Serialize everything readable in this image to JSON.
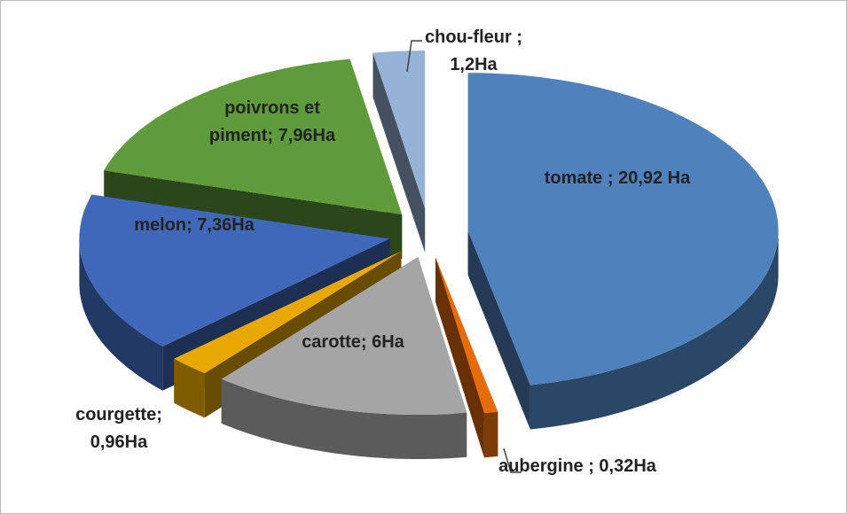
{
  "chart_data": {
    "type": "pie3d",
    "categories": [
      "tomate",
      "aubergine",
      "carotte",
      "courgette",
      "melon",
      "poivrons et piment",
      "chou-fleur"
    ],
    "values": [
      20.92,
      0.32,
      6,
      0.96,
      7.36,
      7.96,
      1.2
    ],
    "value_labels": [
      "tomate ; 20,92 Ha",
      "aubergine ; 0,32Ha",
      "carotte; 6Ha",
      "courgette; 0,96Ha",
      "melon; 7,36Ha",
      "poivrons et piment; 7,96Ha",
      "chou-fleur ; 1,2Ha"
    ],
    "colors": [
      "#4f81bd",
      "#e46c0a",
      "#a5a5a5",
      "#e8a800",
      "#4068b8",
      "#5f9b3a",
      "#95b3d7"
    ]
  }
}
